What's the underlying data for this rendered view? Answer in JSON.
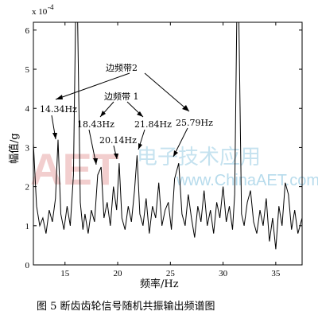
{
  "chart_data": {
    "type": "line",
    "xlabel": "频率/Hz",
    "ylabel": "幅值/g",
    "y_scale_label": "x 10",
    "y_scale_exponent": "-4",
    "xlim": [
      12,
      37.5
    ],
    "ylim": [
      0,
      6.2
    ],
    "xticks": [
      15,
      20,
      25,
      30,
      35
    ],
    "yticks": [
      0,
      1,
      2,
      3,
      4,
      5,
      6
    ],
    "grid": false,
    "series": [
      {
        "color": "#000000",
        "x": [
          12.0,
          12.3,
          12.6,
          12.9,
          13.2,
          13.5,
          13.8,
          14.1,
          14.34,
          14.6,
          14.9,
          15.2,
          15.5,
          15.8,
          16.0,
          16.2,
          16.45,
          16.7,
          16.9,
          17.2,
          17.5,
          17.8,
          18.1,
          18.43,
          18.7,
          19.0,
          19.3,
          19.6,
          19.9,
          20.14,
          20.4,
          20.7,
          21.0,
          21.3,
          21.6,
          21.84,
          22.1,
          22.4,
          22.7,
          23.0,
          23.3,
          23.6,
          23.9,
          24.2,
          24.5,
          24.8,
          25.1,
          25.4,
          25.79,
          26.1,
          26.4,
          26.7,
          27.0,
          27.3,
          27.6,
          27.9,
          28.2,
          28.5,
          28.8,
          29.1,
          29.4,
          29.7,
          30.0,
          30.3,
          30.6,
          30.9,
          31.1,
          31.3,
          31.5,
          31.75,
          32.0,
          32.3,
          32.6,
          32.9,
          33.2,
          33.5,
          33.8,
          34.1,
          34.4,
          34.7,
          35.0,
          35.3,
          35.6,
          35.9,
          36.2,
          36.5,
          36.8,
          37.1,
          37.5
        ],
        "y": [
          3.1,
          1.5,
          1.0,
          1.2,
          0.8,
          1.4,
          1.1,
          1.7,
          3.2,
          1.3,
          0.9,
          1.5,
          1.0,
          2.3,
          6.2,
          6.2,
          1.6,
          0.9,
          1.3,
          0.8,
          1.4,
          1.1,
          2.3,
          2.5,
          1.2,
          1.6,
          1.0,
          2.0,
          1.4,
          2.6,
          1.2,
          0.9,
          1.5,
          1.1,
          1.9,
          2.8,
          1.3,
          1.0,
          1.7,
          0.8,
          1.5,
          1.2,
          2.1,
          1.0,
          1.4,
          1.6,
          0.9,
          2.2,
          2.6,
          1.3,
          1.0,
          1.8,
          1.2,
          0.7,
          1.5,
          1.1,
          1.9,
          1.0,
          1.4,
          0.8,
          1.6,
          1.2,
          2.0,
          1.1,
          1.5,
          0.9,
          1.8,
          6.2,
          6.2,
          1.3,
          1.0,
          1.6,
          1.9,
          1.1,
          0.8,
          1.4,
          1.0,
          1.7,
          0.6,
          1.2,
          0.4,
          1.5,
          1.0,
          2.1,
          1.8,
          0.9,
          1.4,
          0.8,
          1.2
        ]
      }
    ],
    "annotations": {
      "group2_label": "边频带2",
      "group1_label": "边频带 1",
      "labels": [
        "14.34Hz",
        "18.43Hz",
        "20.14Hz",
        "21.84Hz",
        "25.79Hz"
      ]
    }
  },
  "caption": "图 5   断齿齿轮信号随机共振输出频谱图",
  "watermark": {
    "letters": "AET",
    "cn": "电子技术应用",
    "url": "www.ChinaAET.com"
  }
}
